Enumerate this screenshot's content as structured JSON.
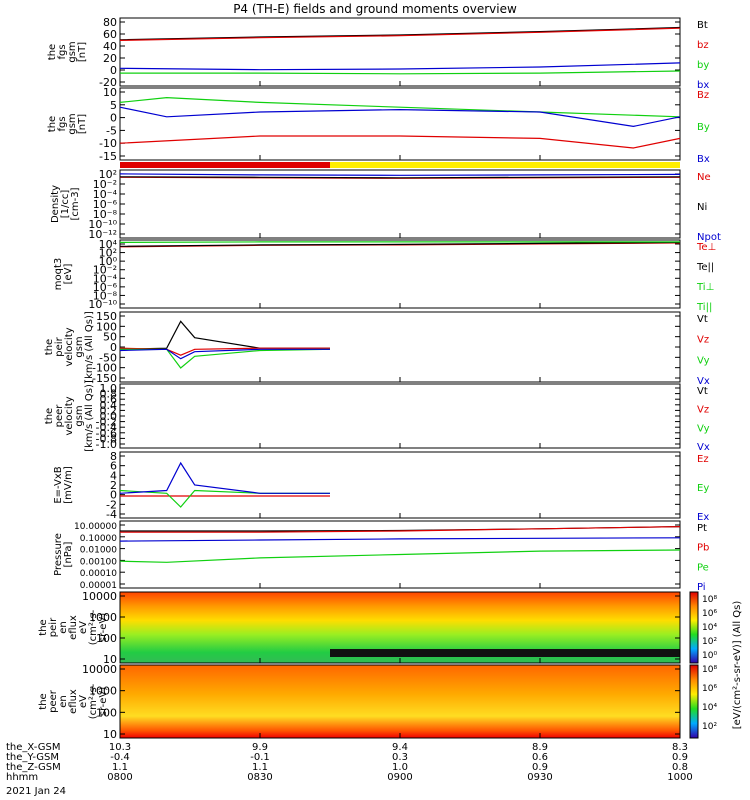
{
  "title": "P4 (TH-E) fields and ground moments overview",
  "date_label": "2021 Jan 24",
  "colors": {
    "black": "#000000",
    "red": "#e00000",
    "blue": "#0000d0",
    "green": "#10d010",
    "yellow": "#ffee00"
  },
  "panels": [
    {
      "id": "bgsm",
      "ylabel": [
        "the",
        "fgs",
        "gsm",
        "[nT]"
      ],
      "ticks": [
        "80",
        "60",
        "40",
        "20",
        "0",
        "-20"
      ],
      "ylim": [
        -20,
        80
      ],
      "legend": [
        {
          "text": "Bt",
          "color": "black"
        },
        {
          "text": "bz",
          "color": "red"
        },
        {
          "text": "by",
          "color": "green"
        },
        {
          "text": "bx",
          "color": "blue"
        }
      ]
    },
    {
      "id": "bdsl",
      "ylabel": [
        "the",
        "fgs",
        "gsm",
        "[nT]"
      ],
      "ticks": [
        "10",
        "5",
        "0",
        "-5",
        "-10",
        "-15"
      ],
      "ylim": [
        -20,
        10
      ],
      "legend": [
        {
          "text": "Bz",
          "color": "red"
        },
        {
          "text": "By",
          "color": "green"
        },
        {
          "text": "Bx",
          "color": "blue"
        }
      ]
    },
    {
      "id": "density",
      "ylabel": [
        "Density",
        "[1/cc]",
        "[cm-3]"
      ],
      "ticks": [
        "10²",
        "10⁻²",
        "10⁻⁴",
        "10⁻⁶",
        "10⁻⁸",
        "10⁻¹⁰",
        "10⁻¹²"
      ],
      "ylim": [
        -12,
        2
      ],
      "legend": [
        {
          "text": "Ne",
          "color": "red"
        },
        {
          "text": "Ni",
          "color": "black"
        },
        {
          "text": "Npot",
          "color": "blue"
        }
      ]
    },
    {
      "id": "temp",
      "ylabel": [
        "moqt3",
        "[eV]"
      ],
      "ticks": [
        "10⁴",
        "10²",
        "10⁰",
        "10⁻²",
        "10⁻⁴",
        "10⁻⁶",
        "10⁻⁸",
        "10⁻¹⁰"
      ],
      "ylim": [
        -10,
        4
      ],
      "legend": [
        {
          "text": "Te⊥",
          "color": "red"
        },
        {
          "text": "Te||",
          "color": "black"
        },
        {
          "text": "Ti⊥",
          "color": "green"
        },
        {
          "text": "Ti||",
          "color": "green"
        }
      ]
    },
    {
      "id": "vpeir",
      "ylabel": [
        "the",
        "peir",
        "velocity",
        "gsm",
        "[km/s (All Qs)]"
      ],
      "ticks": [
        "150",
        "100",
        "50",
        "0",
        "-50",
        "-100",
        "-150"
      ],
      "ylim": [
        -150,
        150
      ],
      "legend": [
        {
          "text": "Vt",
          "color": "black"
        },
        {
          "text": "Vz",
          "color": "red"
        },
        {
          "text": "Vy",
          "color": "green"
        },
        {
          "text": "Vx",
          "color": "blue"
        }
      ]
    },
    {
      "id": "vpeer",
      "ylabel": [
        "the",
        "peer",
        "velocity",
        "gsm",
        "[km/s (All Qs)]"
      ],
      "ticks": [
        "1.0",
        "0.8",
        "0.6",
        "0.4",
        "0.2",
        "0.0",
        "-0.2",
        "-0.4",
        "-0.6",
        "-0.8",
        "-1.0"
      ],
      "ylim": [
        -1,
        1
      ],
      "legend": [
        {
          "text": "Vt",
          "color": "black"
        },
        {
          "text": "Vz",
          "color": "red"
        },
        {
          "text": "Vy",
          "color": "green"
        },
        {
          "text": "Vx",
          "color": "blue"
        }
      ]
    },
    {
      "id": "efield",
      "ylabel": [
        "E=-VxB",
        "[mV/m]"
      ],
      "ticks": [
        "8",
        "6",
        "4",
        "2",
        "0",
        "-2",
        "-4"
      ],
      "ylim": [
        -4,
        8
      ],
      "legend": [
        {
          "text": "Ez",
          "color": "red"
        },
        {
          "text": "Ey",
          "color": "green"
        },
        {
          "text": "Ex",
          "color": "blue"
        }
      ]
    },
    {
      "id": "pressure",
      "ylabel": [
        "Pressure",
        "[nPa]"
      ],
      "ticks": [
        "10.00000",
        "0.10000",
        "0.01000",
        "0.00100",
        "0.00010",
        "0.00001"
      ],
      "ylim": [
        -5,
        1
      ],
      "legend": [
        {
          "text": "Pt",
          "color": "black"
        },
        {
          "text": "Pb",
          "color": "red"
        },
        {
          "text": "Pe",
          "color": "green"
        },
        {
          "text": "Pi",
          "color": "blue"
        }
      ]
    },
    {
      "id": "peir_spec",
      "ylabel": [
        "the",
        "peir",
        "en",
        "eflux",
        "eV",
        "(cm²-s-",
        "sr-eV)"
      ],
      "ticks": [
        "10000",
        "1000",
        "100",
        "10"
      ],
      "ylim": [
        1,
        4.4
      ]
    },
    {
      "id": "peer_spec",
      "ylabel": [
        "the",
        "peer",
        "en",
        "eflux",
        "eV",
        "(cm²-s-",
        "sr-eV)"
      ],
      "ticks": [
        "10000",
        "1000",
        "100",
        "10"
      ],
      "ylim": [
        1,
        4.4
      ]
    }
  ],
  "colorbar": {
    "label": "[eV/(cm²-s-sr-eV)] (All Qs)",
    "top_ticks": [
      "10⁸",
      "10⁶",
      "10⁴",
      "10²",
      "10⁰"
    ],
    "bottom_ticks": [
      "10⁸",
      "10⁶",
      "10⁴",
      "10²"
    ]
  },
  "xaxis": {
    "row_labels": [
      "the_X-GSM",
      "the_Y-GSM",
      "the_Z-GSM",
      "hhmm"
    ],
    "columns": [
      {
        "x": "10.3",
        "y": "-0.4",
        "z": "1.1",
        "hhmm": "0800"
      },
      {
        "x": "9.9",
        "y": "-0.1",
        "z": "1.1",
        "hhmm": "0830"
      },
      {
        "x": "9.4",
        "y": "0.3",
        "z": "1.0",
        "hhmm": "0900"
      },
      {
        "x": "8.9",
        "y": "0.6",
        "z": "0.9",
        "hhmm": "0930"
      },
      {
        "x": "8.3",
        "y": "0.9",
        "z": "0.8",
        "hhmm": "1000"
      }
    ]
  },
  "chart_data": {
    "type": "line",
    "time_range": [
      "0800",
      "1000"
    ],
    "series": [
      {
        "panel": "bgsm",
        "name": "Bt",
        "color": "black",
        "t": [
          0,
          30,
          60,
          90,
          120
        ],
        "y": [
          48,
          52,
          55,
          60,
          66
        ]
      },
      {
        "panel": "bgsm",
        "name": "bz",
        "color": "red",
        "t": [
          0,
          30,
          60,
          90,
          120
        ],
        "y": [
          47,
          51,
          54,
          59,
          65
        ]
      },
      {
        "panel": "bgsm",
        "name": "by",
        "color": "green",
        "t": [
          0,
          30,
          60,
          90,
          120
        ],
        "y": [
          -1,
          -1,
          -2,
          -1,
          2
        ]
      },
      {
        "panel": "bgsm",
        "name": "bx",
        "color": "blue",
        "t": [
          0,
          30,
          60,
          90,
          120
        ],
        "y": [
          6,
          4,
          5,
          8,
          14
        ]
      },
      {
        "panel": "bdsl",
        "name": "Bz",
        "color": "red",
        "t": [
          0,
          30,
          60,
          90,
          110,
          120
        ],
        "y": [
          -13,
          -10,
          -10,
          -11,
          -15,
          -11
        ]
      },
      {
        "panel": "bdsl",
        "name": "By",
        "color": "green",
        "t": [
          0,
          10,
          30,
          60,
          90,
          120
        ],
        "y": [
          4,
          6,
          4,
          2,
          0,
          -2
        ]
      },
      {
        "panel": "bdsl",
        "name": "Bx",
        "color": "blue",
        "t": [
          0,
          10,
          30,
          60,
          90,
          110,
          120
        ],
        "y": [
          2,
          -2,
          0,
          1,
          0,
          -6,
          -2
        ]
      },
      {
        "panel": "density",
        "name": "Ne",
        "color": "red",
        "t": [
          0,
          30,
          60,
          90,
          120
        ],
        "y": [
          0.5,
          0.4,
          0.3,
          0.4,
          0.5
        ]
      },
      {
        "panel": "density",
        "name": "Ni",
        "color": "black",
        "t": [
          0,
          30,
          60,
          90,
          120
        ],
        "y": [
          0.6,
          0.5,
          0.4,
          0.5,
          0.6
        ]
      },
      {
        "panel": "density",
        "name": "Npot",
        "color": "blue",
        "t": [
          0,
          30,
          60,
          90,
          120
        ],
        "y": [
          1.2,
          1.0,
          0.9,
          1.0,
          1.1
        ]
      },
      {
        "panel": "temp",
        "name": "Te⊥",
        "color": "red",
        "t": [
          0,
          30,
          60,
          90,
          120
        ],
        "y": [
          2.6,
          2.9,
          3.0,
          3.2,
          3.4
        ]
      },
      {
        "panel": "temp",
        "name": "Te||",
        "color": "black",
        "t": [
          0,
          30,
          60,
          90,
          120
        ],
        "y": [
          2.7,
          3.0,
          3.1,
          3.3,
          3.5
        ]
      },
      {
        "panel": "temp",
        "name": "Ti⊥",
        "color": "green",
        "t": [
          0,
          30,
          60,
          90,
          120
        ],
        "y": [
          3.5,
          3.6,
          3.6,
          3.6,
          3.6
        ]
      },
      {
        "panel": "vpeir",
        "name": "Vt",
        "color": "black",
        "t": [
          0,
          10,
          13,
          16,
          30,
          45
        ],
        "y": [
          -10,
          -5,
          110,
          40,
          -5,
          -5
        ]
      },
      {
        "panel": "vpeir",
        "name": "Vz",
        "color": "red",
        "t": [
          0,
          10,
          13,
          16,
          30,
          45
        ],
        "y": [
          -5,
          -10,
          -35,
          -10,
          -5,
          -5
        ]
      },
      {
        "panel": "vpeir",
        "name": "Vy",
        "color": "green",
        "t": [
          0,
          10,
          13,
          16,
          30,
          45
        ],
        "y": [
          -10,
          -10,
          -90,
          -40,
          -15,
          -10
        ]
      },
      {
        "panel": "vpeir",
        "name": "Vx",
        "color": "blue",
        "t": [
          0,
          10,
          13,
          16,
          30,
          45
        ],
        "y": [
          -15,
          -10,
          -50,
          -20,
          -10,
          -10
        ]
      },
      {
        "panel": "efield",
        "name": "Ez",
        "color": "red",
        "t": [
          0,
          20,
          45
        ],
        "y": [
          0,
          0,
          0
        ]
      },
      {
        "panel": "efield",
        "name": "Ey",
        "color": "green",
        "t": [
          0,
          10,
          13,
          16,
          30,
          45
        ],
        "y": [
          1,
          0.5,
          -2,
          1,
          0.5,
          0.5
        ]
      },
      {
        "panel": "efield",
        "name": "Ex",
        "color": "blue",
        "t": [
          0,
          10,
          13,
          16,
          30,
          45
        ],
        "y": [
          0.5,
          1,
          6,
          2,
          0.5,
          0.5
        ]
      },
      {
        "panel": "pressure",
        "name": "Pt",
        "color": "black",
        "t": [
          0,
          30,
          60,
          90,
          120
        ],
        "y": [
          0.1,
          0.1,
          0.15,
          0.3,
          0.5
        ]
      },
      {
        "panel": "pressure",
        "name": "Pb",
        "color": "red",
        "t": [
          0,
          30,
          60,
          90,
          120
        ],
        "y": [
          0.0,
          0.0,
          0.1,
          0.3,
          0.5
        ]
      },
      {
        "panel": "pressure",
        "name": "Pe",
        "color": "green",
        "t": [
          0,
          10,
          30,
          60,
          90,
          120
        ],
        "y": [
          -2.6,
          -2.7,
          -2.3,
          -2.0,
          -1.7,
          -1.6
        ]
      },
      {
        "panel": "pressure",
        "name": "Pi",
        "color": "blue",
        "t": [
          0,
          30,
          60,
          90,
          120
        ],
        "y": [
          -0.8,
          -0.7,
          -0.6,
          -0.55,
          -0.5
        ]
      }
    ],
    "mode_bar": [
      {
        "from": 0,
        "to": 45,
        "color": "red"
      },
      {
        "from": 45,
        "to": 120,
        "color": "yellow"
      }
    ]
  }
}
